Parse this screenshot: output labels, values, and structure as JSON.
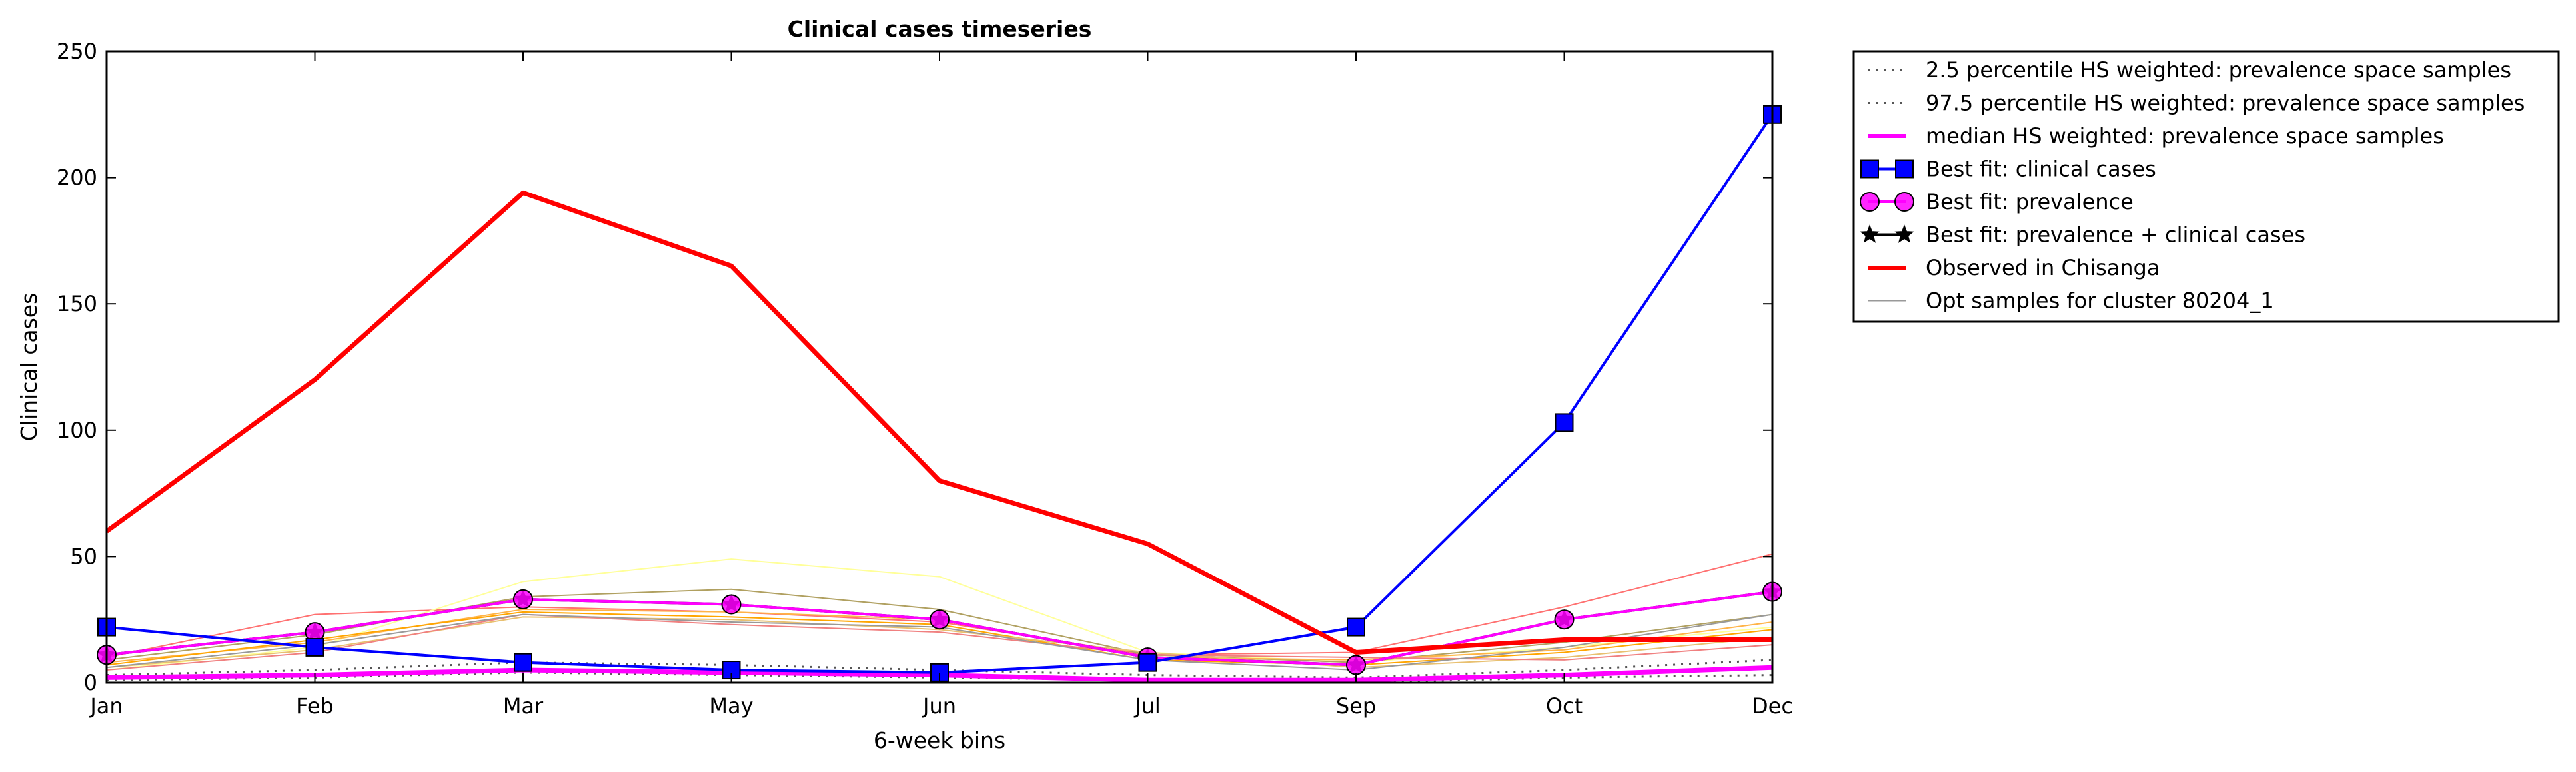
{
  "chart_data": {
    "type": "line",
    "title": "Clinical cases timeseries",
    "xlabel": "6-week bins",
    "ylabel": "Clinical cases",
    "categories": [
      "Jan",
      "Feb",
      "Mar",
      "May",
      "Jun",
      "Jul",
      "Sep",
      "Oct",
      "Dec"
    ],
    "ylim": [
      0,
      250
    ],
    "yticks": [
      0,
      50,
      100,
      150,
      200,
      250
    ],
    "grid": false,
    "legend_position": "outside-right",
    "legend": [
      "2.5 percentile HS weighted: prevalence space samples",
      "97.5 percentile HS weighted: prevalence space samples",
      "median HS weighted: prevalence space samples",
      "Best fit: clinical cases",
      "Best fit: prevalence",
      "Best fit: prevalence + clinical cases",
      "Observed in Chisanga",
      "Opt samples for cluster 80204_1"
    ],
    "series": [
      {
        "name": "Observed in Chisanga",
        "color": "#ff0000",
        "style": "solid-thick",
        "values": [
          60,
          120,
          194,
          165,
          80,
          55,
          12,
          17,
          17
        ]
      },
      {
        "name": "Best fit: clinical cases",
        "color": "#0000ff",
        "marker": "square",
        "values": [
          22,
          14,
          8,
          5,
          4,
          8,
          22,
          103,
          225
        ]
      },
      {
        "name": "Best fit: prevalence",
        "color": "#ff00ff",
        "marker": "circle",
        "values": [
          11,
          20,
          33,
          31,
          25,
          10,
          7,
          25,
          36
        ]
      },
      {
        "name": "Best fit: prevalence + clinical cases",
        "color": "#000000",
        "marker": "star",
        "values": [
          11,
          20,
          33,
          31,
          25,
          10,
          7,
          25,
          36
        ]
      },
      {
        "name": "median HS weighted: prevalence space samples",
        "color": "#ff00ff",
        "style": "solid-thick",
        "values": [
          2,
          3,
          5,
          4,
          3,
          1,
          1,
          3,
          6
        ]
      },
      {
        "name": "2.5 percentile HS weighted: prevalence space samples",
        "color": "#555555",
        "style": "dotted",
        "values": [
          1,
          2,
          4,
          3,
          2,
          1,
          0,
          2,
          3
        ]
      },
      {
        "name": "97.5 percentile HS weighted: prevalence space samples",
        "color": "#555555",
        "style": "dotted",
        "values": [
          3,
          5,
          8,
          7,
          5,
          3,
          2,
          5,
          9
        ]
      },
      {
        "name": "Opt samples for cluster 80204_1",
        "color": "#999999",
        "style": "thin",
        "values": [
          6,
          15,
          27,
          24,
          22,
          9,
          5,
          14,
          27
        ]
      }
    ],
    "sample_series": [
      {
        "color": "#ff7070",
        "values": [
          10,
          27,
          30,
          28,
          24,
          11,
          12,
          30,
          51
        ]
      },
      {
        "color": "#ffff99",
        "values": [
          5,
          14,
          40,
          49,
          42,
          12,
          8,
          14,
          22
        ]
      },
      {
        "color": "#b0a060",
        "values": [
          9,
          19,
          34,
          37,
          29,
          11,
          8,
          16,
          27
        ]
      },
      {
        "color": "#ffb347",
        "values": [
          8,
          16,
          29,
          28,
          25,
          10,
          9,
          13,
          24
        ]
      },
      {
        "color": "#ffa500",
        "values": [
          7,
          17,
          28,
          26,
          23,
          9,
          7,
          12,
          21
        ]
      },
      {
        "color": "#e8c070",
        "values": [
          6,
          13,
          26,
          25,
          21,
          12,
          6,
          10,
          18
        ]
      },
      {
        "color": "#f08080",
        "values": [
          5,
          12,
          27,
          23,
          20,
          11,
          10,
          9,
          15
        ]
      }
    ]
  }
}
